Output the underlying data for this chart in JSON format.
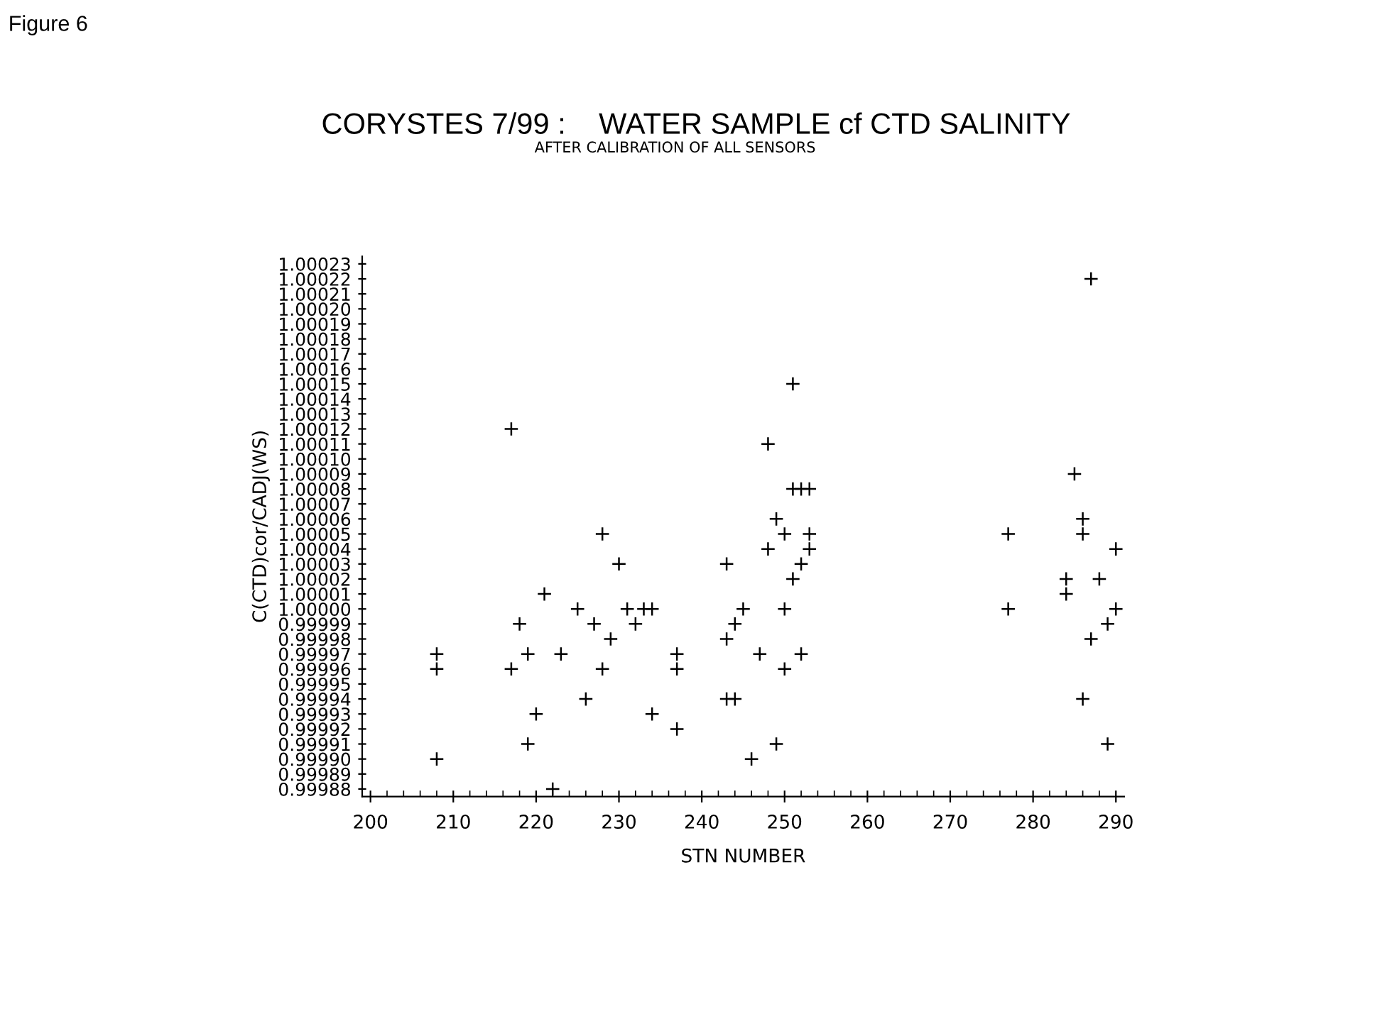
{
  "chart_data": {
    "type": "scatter",
    "title": "CORYSTES 7/99 :    WATER SAMPLE cf CTD SALINITY",
    "subtitle": "AFTER CALIBRATION OF ALL SENSORS",
    "xlabel": "STN NUMBER",
    "ylabel": "C(CTD)cor/CADJ(WS)",
    "annotations": [
      "Figure 6"
    ],
    "marker": "cross",
    "grid": false,
    "series": [
      {
        "color": "#000000",
        "x": [
          208,
          208,
          208,
          217,
          217,
          218,
          219,
          219,
          220,
          221,
          222,
          223,
          225,
          226,
          227,
          228,
          228,
          229,
          230,
          231,
          232,
          233,
          234,
          234,
          237,
          237,
          237,
          243,
          243,
          243,
          244,
          244,
          245,
          246,
          247,
          248,
          248,
          249,
          249,
          250,
          250,
          250,
          251,
          251,
          251,
          252,
          252,
          252,
          253,
          253,
          253,
          277,
          277,
          284,
          284,
          285,
          286,
          286,
          286,
          287,
          287,
          288,
          289,
          289,
          290,
          290
        ],
        "values": [
          0.99997,
          0.99996,
          0.9999,
          1.00012,
          0.99996,
          0.99999,
          0.99997,
          0.99991,
          0.99993,
          1.00001,
          0.99988,
          0.99997,
          1.0,
          0.99994,
          0.99999,
          1.00005,
          0.99996,
          0.99998,
          1.00003,
          1.0,
          0.99999,
          1.0,
          1.0,
          0.99993,
          0.99997,
          0.99996,
          0.99992,
          1.00003,
          0.99998,
          0.99994,
          0.99999,
          0.99994,
          1.0,
          0.9999,
          0.99997,
          1.00011,
          1.00004,
          1.00006,
          0.99991,
          1.00005,
          1.0,
          0.99996,
          1.00015,
          1.00008,
          1.00002,
          1.00008,
          1.00003,
          0.99997,
          1.00008,
          1.00005,
          1.00004,
          1.00005,
          1.0,
          1.00002,
          1.00001,
          1.00009,
          1.00006,
          1.00005,
          0.99994,
          1.00022,
          0.99998,
          1.00002,
          0.99999,
          0.99991,
          1.00004,
          1.0
        ]
      }
    ],
    "xlim": [
      199,
      291
    ],
    "xticks": [
      200,
      210,
      220,
      230,
      240,
      250,
      260,
      270,
      280,
      290
    ],
    "ylim": [
      0.999875,
      1.000235
    ],
    "yticks": [
      {
        "value": 0.99988,
        "label": "0.99988"
      },
      {
        "value": 0.99989,
        "label": "0.99989"
      },
      {
        "value": 0.9999,
        "label": "0.99990"
      },
      {
        "value": 0.99991,
        "label": "0.99991"
      },
      {
        "value": 0.99992,
        "label": "0.99992"
      },
      {
        "value": 0.99993,
        "label": "0.99993"
      },
      {
        "value": 0.99994,
        "label": "0.99994"
      },
      {
        "value": 0.99995,
        "label": "0.99995"
      },
      {
        "value": 0.99996,
        "label": "0.99996"
      },
      {
        "value": 0.99997,
        "label": "0.99997"
      },
      {
        "value": 0.99998,
        "label": "0.99998"
      },
      {
        "value": 0.99999,
        "label": "0.99999"
      },
      {
        "value": 1.0,
        "label": "1.00000"
      },
      {
        "value": 1.00001,
        "label": "1.00001"
      },
      {
        "value": 1.00002,
        "label": "1.00002"
      },
      {
        "value": 1.00003,
        "label": "1.00003"
      },
      {
        "value": 1.00004,
        "label": "1.00004"
      },
      {
        "value": 1.00005,
        "label": "1.00005"
      },
      {
        "value": 1.00006,
        "label": "1.00006"
      },
      {
        "value": 1.00007,
        "label": "1.00007"
      },
      {
        "value": 1.00008,
        "label": "1.00008"
      },
      {
        "value": 1.00009,
        "label": "1.00009"
      },
      {
        "value": 1.0001,
        "label": "1.00010"
      },
      {
        "value": 1.00011,
        "label": "1.00011"
      },
      {
        "value": 1.00012,
        "label": "1.00012"
      },
      {
        "value": 1.00013,
        "label": "1.00013"
      },
      {
        "value": 1.00014,
        "label": "1.00014"
      },
      {
        "value": 1.00015,
        "label": "1.00015"
      },
      {
        "value": 1.00016,
        "label": "1.00016"
      },
      {
        "value": 1.00017,
        "label": "1.00017"
      },
      {
        "value": 1.00018,
        "label": "1.00018"
      },
      {
        "value": 1.00019,
        "label": "1.00019"
      },
      {
        "value": 1.0002,
        "label": "1.00020"
      },
      {
        "value": 1.00021,
        "label": "1.00021"
      },
      {
        "value": 1.00022,
        "label": "1.00022"
      },
      {
        "value": 1.00023,
        "label": "1.00023"
      }
    ]
  }
}
